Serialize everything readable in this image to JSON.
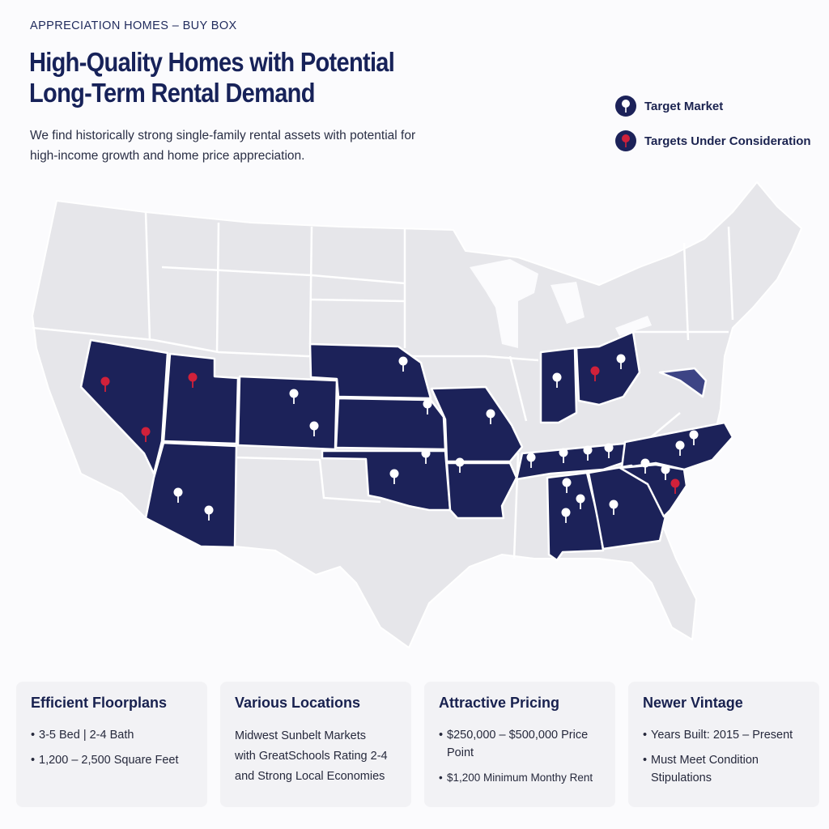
{
  "header": {
    "eyebrow": "APPRECIATION HOMES – BUY BOX",
    "title_line1": "High-Quality Homes with Potential",
    "title_line2": "Long-Term Rental Demand",
    "subtitle_line1": "We find historically strong single-family rental assets with potential for",
    "subtitle_line2": "high-income growth and home price appreciation."
  },
  "legend": {
    "target_market": "Target Market",
    "under_consideration": "Targets Under Consideration"
  },
  "colors": {
    "state_highlight": "#1c2259",
    "state_base": "#e6e6ea",
    "pin_target": "#ffffff",
    "pin_consideration": "#d0213a"
  },
  "map": {
    "highlighted_states": [
      "Nevada",
      "Utah",
      "Arizona",
      "Colorado",
      "Nebraska",
      "Kansas",
      "Oklahoma",
      "Missouri",
      "Arkansas",
      "Indiana",
      "Ohio",
      "Tennessee",
      "Alabama",
      "Georgia",
      "South Carolina",
      "North Carolina",
      "Maryland"
    ],
    "consideration_markets": [
      "Nevada",
      "Utah",
      "Ohio",
      "South Carolina"
    ]
  },
  "cards": [
    {
      "title": "Efficient Floorplans",
      "items": [
        "3-5 Bed | 2-4 Bath",
        "1,200 – 2,500 Square Feet"
      ]
    },
    {
      "title": "Various Locations",
      "text": [
        "Midwest Sunbelt Markets",
        "with GreatSchools Rating 2-4",
        "and Strong Local Economies"
      ]
    },
    {
      "title": "Attractive Pricing",
      "items": [
        "$250,000 – $500,000 Price Point",
        "$1,200 Minimum Monthy Rent"
      ]
    },
    {
      "title": "Newer Vintage",
      "items": [
        "Years Built: 2015 – Present",
        "Must Meet Condition Stipulations"
      ]
    }
  ]
}
